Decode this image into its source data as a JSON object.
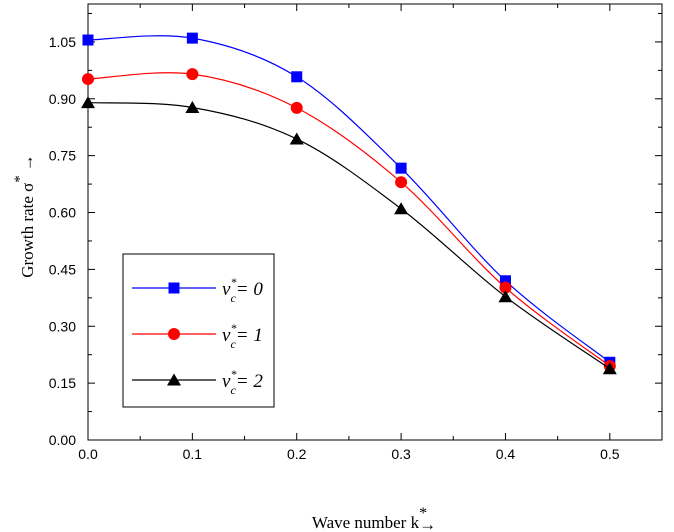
{
  "chart_data": {
    "type": "line",
    "title": "",
    "xlabel": "Wave number",
    "xlabel_symbol": "k",
    "xlabel_sup": "*",
    "xlabel_arrow": "→",
    "ylabel": "Growth rate",
    "ylabel_symbol": "σ",
    "ylabel_sup": "*",
    "ylabel_arrow": "→",
    "xlim": [
      0.0,
      0.55
    ],
    "ylim": [
      0.0,
      1.15
    ],
    "xticks": [
      0.0,
      0.1,
      0.2,
      0.3,
      0.4,
      0.5
    ],
    "xtick_labels": [
      "0.0",
      "0.1",
      "0.2",
      "0.3",
      "0.4",
      "0.5"
    ],
    "yticks": [
      0.0,
      0.15,
      0.3,
      0.45,
      0.6,
      0.75,
      0.9,
      1.05
    ],
    "ytick_labels": [
      "0.00",
      "0.15",
      "0.30",
      "0.45",
      "0.60",
      "0.75",
      "0.90",
      "1.05"
    ],
    "grid": false,
    "legend_position": "lower-left",
    "x": [
      0.0,
      0.1,
      0.2,
      0.3,
      0.4,
      0.5
    ],
    "series": [
      {
        "name": "ν*c= 0",
        "legend_nu": "ν",
        "legend_sup": "*",
        "legend_sub": "c",
        "legend_value": "= 0",
        "marker": "square",
        "color": "#0000ff",
        "marker_color": "#0000ff",
        "values": [
          1.055,
          1.06,
          0.958,
          0.717,
          0.42,
          0.205
        ]
      },
      {
        "name": "ν*c= 1",
        "legend_nu": "ν",
        "legend_sup": "*",
        "legend_sub": "c",
        "legend_value": "= 1",
        "marker": "circle",
        "color": "#ff0000",
        "marker_color": "#ff0000",
        "values": [
          0.952,
          0.965,
          0.876,
          0.68,
          0.402,
          0.195
        ]
      },
      {
        "name": "ν*c= 2",
        "legend_nu": "ν",
        "legend_sup": "*",
        "legend_sub": "c",
        "legend_value": "= 2",
        "marker": "triangle",
        "color": "#000000",
        "marker_color": "#000000",
        "values": [
          0.89,
          0.877,
          0.794,
          0.61,
          0.378,
          0.188
        ]
      }
    ]
  }
}
